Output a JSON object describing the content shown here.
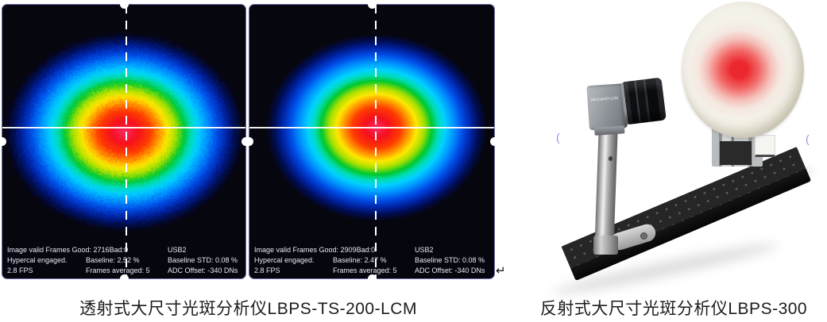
{
  "panels": [
    {
      "id": "transmissive-beam-profile",
      "beam": {
        "shape": "gaussian",
        "noise": "high"
      },
      "status": {
        "rows": [
          {
            "cells": [
              "Image valid  Frames Good: 2716Bad:0",
              "USB2"
            ]
          },
          {
            "cells": [
              "Hypercal engaged.",
              "Baseline: 2.52 %",
              "Baseline STD:  0.08 %"
            ]
          },
          {
            "cells": [
              "2.8 FPS",
              "Frames averaged: 5",
              "ADC Offset: -340 DNs"
            ]
          }
        ]
      }
    },
    {
      "id": "reflective-beam-profile",
      "beam": {
        "shape": "gaussian",
        "noise": "low"
      },
      "status": {
        "rows": [
          {
            "cells": [
              "Image valid  Frames Good: 2909Bad:0",
              "USB2"
            ]
          },
          {
            "cells": [
              "Hypercal engaged.",
              "Baseline: 2.47 %",
              "Baseline STD:  0.08 %"
            ]
          },
          {
            "cells": [
              "2.8 FPS",
              "Frames averaged: 5",
              "ADC Offset: -340 DNs"
            ]
          }
        ]
      }
    }
  ],
  "colors": {
    "panel_background": "#06060f",
    "panel_border": "#6d6da8",
    "status_text": "#e6e9f2",
    "crosshair": "#ffffff",
    "beam_colormap": [
      "#fb2b63",
      "#f50f1e",
      "#ff3c00",
      "#ff9000",
      "#ffe800",
      "#a8e000",
      "#00c82d",
      "#00dcb4",
      "#00d2ff",
      "#0092ff",
      "#004ce6",
      "#0022a0",
      "#000c50"
    ],
    "laser_spot": "#ec1c24",
    "caption_text": "#1c1c1c"
  },
  "photo": {
    "camera_label": "WinCamD-LCM"
  },
  "marks": {
    "return_glyph": "↵",
    "artifact_glyph": "("
  },
  "captions": {
    "left": "透射式大尺寸光斑分析仪LBPS-TS-200-LCM",
    "right": "反射式大尺寸光斑分析仪LBPS-300"
  }
}
